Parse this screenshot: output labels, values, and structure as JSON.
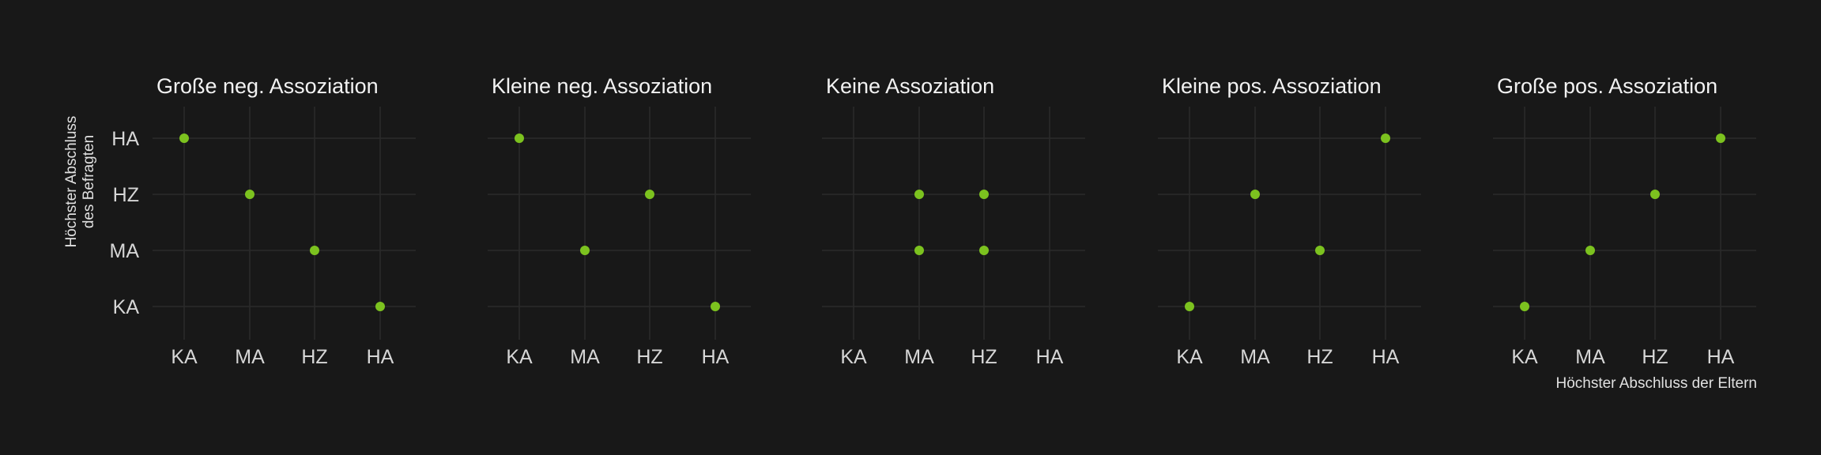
{
  "chart_data": {
    "type": "scatter",
    "categories": [
      "KA",
      "MA",
      "HZ",
      "HA"
    ],
    "xlabel": "Höchster Abschluss der Eltern",
    "ylabel_lines": [
      "Höchster Abschluss",
      "des Befragten"
    ],
    "point_color": "#7cc21f",
    "grid": true,
    "panels": [
      {
        "title": "Große neg. Assoziation",
        "points": [
          {
            "x": "KA",
            "y": "HA"
          },
          {
            "x": "MA",
            "y": "HZ"
          },
          {
            "x": "HZ",
            "y": "MA"
          },
          {
            "x": "HA",
            "y": "KA"
          }
        ]
      },
      {
        "title": "Kleine neg. Assoziation",
        "points": [
          {
            "x": "KA",
            "y": "HA"
          },
          {
            "x": "MA",
            "y": "MA"
          },
          {
            "x": "HZ",
            "y": "HZ"
          },
          {
            "x": "HA",
            "y": "KA"
          }
        ]
      },
      {
        "title": "Keine Assoziation",
        "points": [
          {
            "x": "MA",
            "y": "HZ"
          },
          {
            "x": "MA",
            "y": "MA"
          },
          {
            "x": "HZ",
            "y": "HZ"
          },
          {
            "x": "HZ",
            "y": "MA"
          }
        ]
      },
      {
        "title": "Kleine pos. Assoziation",
        "points": [
          {
            "x": "KA",
            "y": "KA"
          },
          {
            "x": "MA",
            "y": "HZ"
          },
          {
            "x": "HZ",
            "y": "MA"
          },
          {
            "x": "HA",
            "y": "HA"
          }
        ]
      },
      {
        "title": "Große pos. Assoziation",
        "points": [
          {
            "x": "KA",
            "y": "KA"
          },
          {
            "x": "MA",
            "y": "MA"
          },
          {
            "x": "HZ",
            "y": "HZ"
          },
          {
            "x": "HA",
            "y": "HA"
          }
        ]
      }
    ]
  }
}
